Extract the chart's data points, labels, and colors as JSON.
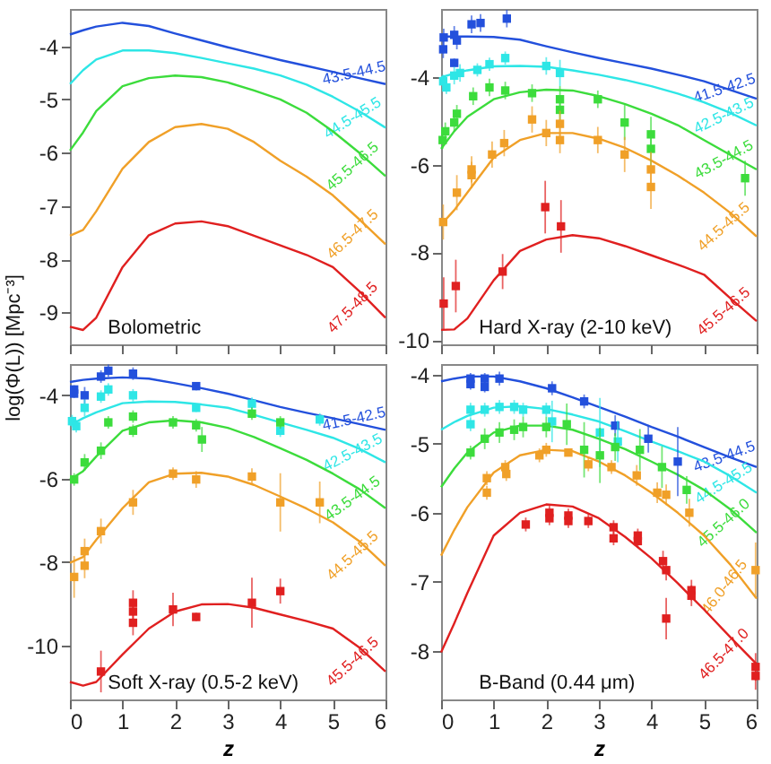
{
  "chart_data": [
    {
      "type": "line",
      "annotations": [
        "Bolometric"
      ],
      "xlim": [
        0,
        6
      ],
      "xticks": [
        0,
        1,
        2,
        3,
        4,
        5,
        6
      ],
      "ylim": [
        -9.6,
        -3.3
      ],
      "yticks": [
        -9,
        -8,
        -7,
        -6,
        -5,
        -4
      ],
      "tick_labels": "y",
      "x": [
        0,
        0.25,
        0.5,
        1,
        1.5,
        2,
        2.5,
        3,
        3.5,
        4,
        4.5,
        5,
        5.5,
        6
      ],
      "series": [
        {
          "name": "43.5-44.5",
          "color": "#2350dc",
          "values": [
            -3.78,
            -3.7,
            -3.63,
            -3.56,
            -3.62,
            -3.76,
            -3.89,
            -4.02,
            -4.14,
            -4.26,
            -4.37,
            -4.48,
            -4.6,
            -4.71
          ]
        },
        {
          "name": "44.5-45.5",
          "color": "#2ee6e6",
          "values": [
            -4.71,
            -4.45,
            -4.25,
            -4.08,
            -4.08,
            -4.13,
            -4.22,
            -4.32,
            -4.42,
            -4.55,
            -4.72,
            -4.95,
            -5.22,
            -5.53
          ]
        },
        {
          "name": "45.5-46.5",
          "color": "#3cdc3c",
          "values": [
            -5.96,
            -5.62,
            -5.22,
            -4.75,
            -4.6,
            -4.55,
            -4.58,
            -4.68,
            -4.83,
            -5.0,
            -5.25,
            -5.6,
            -6.0,
            -6.44
          ]
        },
        {
          "name": "46.5-47.5",
          "color": "#f0a028",
          "values": [
            -7.56,
            -7.45,
            -7.1,
            -6.3,
            -5.8,
            -5.52,
            -5.46,
            -5.55,
            -5.8,
            -6.15,
            -6.45,
            -6.8,
            -7.25,
            -7.72
          ]
        },
        {
          "name": "47.5-48.5",
          "color": "#e02020",
          "values": [
            -9.27,
            -9.33,
            -9.1,
            -8.15,
            -7.55,
            -7.33,
            -7.29,
            -7.38,
            -7.56,
            -7.74,
            -7.92,
            -8.15,
            -8.6,
            -9.1
          ]
        }
      ]
    },
    {
      "type": "line",
      "annotations": [
        "Hard X-ray (2-10 keV)"
      ],
      "xlim": [
        0,
        6
      ],
      "xticks": [
        0,
        1,
        2,
        3,
        4,
        5,
        6
      ],
      "ylim": [
        -10.1,
        -2.45
      ],
      "yticks": [
        -10,
        -8,
        -6,
        -4
      ],
      "tick_labels": "y",
      "x": [
        0,
        0.25,
        0.5,
        1,
        1.5,
        2,
        2.5,
        3,
        3.5,
        4,
        4.5,
        5,
        5.5,
        6
      ],
      "series": [
        {
          "name": "41.5-42.5",
          "color": "#2350dc",
          "values": [
            -3.08,
            -3.08,
            -3.08,
            -3.09,
            -3.15,
            -3.3,
            -3.44,
            -3.57,
            -3.69,
            -3.81,
            -3.95,
            -4.1,
            -4.3,
            -4.5
          ]
        },
        {
          "name": "42.5-43.5",
          "color": "#2ee6e6",
          "values": [
            -4.01,
            -3.92,
            -3.85,
            -3.76,
            -3.75,
            -3.77,
            -3.85,
            -3.95,
            -4.07,
            -4.21,
            -4.38,
            -4.58,
            -4.82,
            -5.11
          ]
        },
        {
          "name": "43.5-44.5",
          "color": "#3cdc3c",
          "values": [
            -5.64,
            -5.24,
            -4.91,
            -4.51,
            -4.35,
            -4.29,
            -4.31,
            -4.44,
            -4.62,
            -4.84,
            -5.1,
            -5.44,
            -5.78,
            -6.11
          ]
        },
        {
          "name": "44.5-45.5",
          "color": "#f0a028",
          "values": [
            -7.37,
            -7.04,
            -6.64,
            -5.84,
            -5.44,
            -5.28,
            -5.28,
            -5.41,
            -5.62,
            -5.91,
            -6.25,
            -6.64,
            -7.1,
            -7.64
          ]
        },
        {
          "name": "45.5-46.5",
          "color": "#e02020",
          "values": [
            -9.77,
            -9.76,
            -9.51,
            -8.64,
            -7.97,
            -7.71,
            -7.61,
            -7.68,
            -7.86,
            -8.07,
            -8.28,
            -8.51,
            -9.05,
            -9.57
          ]
        },
        {
          "type": "scatter",
          "color": "#2350dc",
          "marker": "square",
          "x": [
            0.04,
            0.05,
            0.25,
            0.3,
            0.58,
            0.75,
            1.25,
            0.25
          ],
          "values": [
            -3.37,
            -3.1,
            -3.04,
            -3.17,
            -2.8,
            -2.77,
            -2.67,
            -3.68
          ],
          "errors": [
            0.2,
            0.2,
            0.2,
            0.2,
            0.2,
            0.2,
            0.2,
            0.1
          ]
        },
        {
          "type": "scatter",
          "color": "#2ee6e6",
          "marker": "square",
          "x": [
            0.04,
            0.1,
            0.25,
            0.36,
            0.69,
            0.92,
            1.22,
            2.0,
            2.26
          ],
          "values": [
            -4.1,
            -4.24,
            -3.97,
            -3.91,
            -3.84,
            -3.71,
            -3.57,
            -3.75,
            -3.91
          ],
          "errors": [
            0.15,
            0.15,
            0.2,
            0.2,
            0.15,
            0.15,
            0.15,
            0.2,
            0.3
          ]
        },
        {
          "type": "scatter",
          "color": "#3cdc3c",
          "marker": "square",
          "x": [
            0.03,
            0.08,
            0.25,
            0.3,
            0.61,
            0.92,
            1.22,
            1.73,
            2.26,
            2.26,
            2.98,
            3.49,
            3.99,
            3.99,
            5.78
          ],
          "values": [
            -5.44,
            -5.24,
            -5.04,
            -4.84,
            -4.44,
            -4.24,
            -4.31,
            -4.37,
            -4.51,
            -4.75,
            -4.51,
            -5.04,
            -5.31,
            -5.64,
            -6.31
          ],
          "errors": [
            0.2,
            0.2,
            0.2,
            0.2,
            0.2,
            0.2,
            0.2,
            0.2,
            0.3,
            0.3,
            0.2,
            0.4,
            0.4,
            0.4,
            0.4
          ]
        },
        {
          "type": "scatter",
          "color": "#f0a028",
          "marker": "square",
          "x": [
            0.04,
            0.3,
            0.58,
            0.58,
            0.97,
            1.2,
            1.73,
            2.0,
            2.26,
            2.26,
            2.98,
            3.49,
            3.99,
            3.99
          ],
          "values": [
            -7.31,
            -6.64,
            -6.11,
            -6.24,
            -5.77,
            -5.51,
            -4.97,
            -5.28,
            -5.07,
            -5.44,
            -5.44,
            -5.77,
            -6.51,
            -6.11
          ],
          "errors": [
            0.4,
            0.4,
            0.3,
            0.3,
            0.3,
            0.3,
            0.3,
            0.3,
            0.3,
            0.3,
            0.3,
            0.4,
            0.5,
            0.4
          ]
        },
        {
          "type": "scatter",
          "color": "#e02020",
          "marker": "square",
          "x": [
            0.05,
            0.28,
            1.17,
            1.98,
            2.28
          ],
          "values": [
            -9.17,
            -8.77,
            -8.44,
            -6.97,
            -7.41
          ],
          "errors": [
            0.6,
            0.6,
            0.4,
            0.6,
            0.6
          ]
        }
      ]
    },
    {
      "type": "line",
      "annotations": [
        "Soft X-ray (0.5-2 keV)"
      ],
      "xlabel": "z",
      "ylabel": "log(Φ(L))  [Mpc⁻³]",
      "xlim": [
        0,
        6
      ],
      "xticks": [
        0,
        1,
        2,
        3,
        4,
        5,
        6
      ],
      "ylim": [
        -11.3,
        -3.25
      ],
      "yticks": [
        -10,
        -8,
        -6,
        -4
      ],
      "x": [
        0,
        0.25,
        0.5,
        1,
        1.5,
        2,
        2.5,
        3,
        3.5,
        4,
        4.5,
        5,
        5.5,
        6
      ],
      "series": [
        {
          "name": "41.5-42.5",
          "color": "#2350dc",
          "values": [
            -3.68,
            -3.63,
            -3.6,
            -3.57,
            -3.6,
            -3.71,
            -3.83,
            -3.96,
            -4.12,
            -4.28,
            -4.42,
            -4.55,
            -4.69,
            -4.83
          ]
        },
        {
          "name": "42.5-43.5",
          "color": "#2ee6e6",
          "values": [
            -4.72,
            -4.55,
            -4.41,
            -4.19,
            -4.15,
            -4.16,
            -4.22,
            -4.3,
            -4.47,
            -4.65,
            -4.83,
            -5.02,
            -5.28,
            -5.61
          ]
        },
        {
          "name": "43.5-44.5",
          "color": "#3cdc3c",
          "values": [
            -6.02,
            -5.82,
            -5.47,
            -4.85,
            -4.65,
            -4.6,
            -4.65,
            -4.78,
            -5.0,
            -5.27,
            -5.55,
            -5.88,
            -6.25,
            -6.71
          ]
        },
        {
          "name": "44.5-45.5",
          "color": "#f0a028",
          "values": [
            -8.02,
            -7.88,
            -7.47,
            -6.71,
            -6.09,
            -5.88,
            -5.86,
            -5.95,
            -6.15,
            -6.43,
            -6.72,
            -7.05,
            -7.5,
            -8.09
          ]
        },
        {
          "name": "45.5-46.5",
          "color": "#e02020",
          "values": [
            -10.88,
            -10.97,
            -10.88,
            -10.22,
            -9.6,
            -9.19,
            -9.02,
            -9.01,
            -9.1,
            -9.26,
            -9.42,
            -9.6,
            -10.05,
            -10.63
          ]
        },
        {
          "type": "scatter",
          "color": "#2350dc",
          "marker": "square",
          "x": [
            0.08,
            0.08,
            0.28,
            0.59,
            0.73,
            1.2,
            2.4
          ],
          "values": [
            -3.96,
            -3.86,
            -4.0,
            -3.55,
            -3.41,
            -3.48,
            -3.78
          ],
          "errors": [
            0.1,
            0.1,
            0.2,
            0.15,
            0.15,
            0.15,
            0.1
          ]
        },
        {
          "type": "scatter",
          "color": "#2ee6e6",
          "marker": "square",
          "x": [
            0.04,
            0.12,
            0.28,
            0.59,
            0.73,
            1.2,
            2.4,
            3.46,
            4.0,
            4.75
          ],
          "values": [
            -4.62,
            -4.74,
            -4.3,
            -4.03,
            -3.86,
            -4.0,
            -4.3,
            -4.2,
            -4.85,
            -4.58
          ],
          "errors": [
            0.15,
            0.15,
            0.2,
            0.15,
            0.15,
            0.15,
            0.1,
            0.15,
            0.15,
            0.15
          ]
        },
        {
          "type": "scatter",
          "color": "#3cdc3c",
          "marker": "square",
          "x": [
            0.08,
            0.28,
            0.59,
            0.73,
            1.2,
            1.2,
            1.96,
            2.4,
            2.51,
            3.46,
            4.0
          ],
          "values": [
            -6.02,
            -5.61,
            -5.33,
            -4.65,
            -4.85,
            -4.51,
            -4.65,
            -4.72,
            -5.06,
            -4.44,
            -4.65
          ],
          "errors": [
            0.15,
            0.2,
            0.2,
            0.15,
            0.15,
            0.15,
            0.15,
            0.15,
            0.3,
            0.15,
            0.15
          ]
        },
        {
          "type": "scatter",
          "color": "#f0a028",
          "marker": "square",
          "x": [
            0.08,
            0.28,
            0.28,
            0.59,
            1.2,
            1.96,
            2.4,
            3.46,
            4.0,
            4.75
          ],
          "values": [
            -8.36,
            -7.74,
            -8.09,
            -7.26,
            -6.57,
            -5.88,
            -6.02,
            -5.95,
            -6.57,
            -6.57
          ],
          "errors": [
            0.5,
            0.3,
            0.3,
            0.3,
            0.3,
            0.15,
            0.2,
            0.2,
            0.7,
            0.5
          ]
        },
        {
          "type": "scatter",
          "color": "#e02020",
          "marker": "square",
          "x": [
            1.2,
            1.2,
            1.2,
            1.96,
            2.4,
            3.46,
            4.0,
            0.59
          ],
          "values": [
            -8.98,
            -9.19,
            -9.46,
            -9.14,
            -9.32,
            -8.98,
            -8.7,
            -10.63
          ],
          "errors": [
            0.3,
            0.3,
            0.3,
            0.4,
            0.1,
            0.6,
            0.3,
            0.5
          ]
        }
      ]
    },
    {
      "type": "line",
      "annotations": [
        "B-Band (0.44 μm)"
      ],
      "xlabel": "z",
      "xlim": [
        0,
        6
      ],
      "xticks": [
        0,
        1,
        2,
        3,
        4,
        5,
        6
      ],
      "ylim": [
        -8.7,
        -3.85
      ],
      "yticks": [
        -8,
        -7,
        -6,
        -5,
        -4
      ],
      "x": [
        0,
        0.25,
        0.5,
        1,
        1.5,
        2,
        2.5,
        3,
        3.5,
        4,
        4.5,
        5,
        5.5,
        6
      ],
      "series": [
        {
          "name": "43.5-44.5",
          "color": "#2350dc",
          "values": [
            -4.1,
            -4.06,
            -4.03,
            -4.03,
            -4.1,
            -4.2,
            -4.33,
            -4.47,
            -4.61,
            -4.76,
            -4.9,
            -5.05,
            -5.2,
            -5.34
          ]
        },
        {
          "name": "44.5-45.5",
          "color": "#2ee6e6",
          "values": [
            -4.8,
            -4.69,
            -4.6,
            -4.48,
            -4.46,
            -4.5,
            -4.58,
            -4.68,
            -4.82,
            -4.97,
            -5.11,
            -5.26,
            -5.47,
            -5.71
          ]
        },
        {
          "name": "45.5-46.0",
          "color": "#3cdc3c",
          "values": [
            -5.63,
            -5.36,
            -5.13,
            -4.84,
            -4.74,
            -4.74,
            -4.8,
            -4.93,
            -5.08,
            -5.26,
            -5.45,
            -5.67,
            -5.95,
            -6.29
          ]
        },
        {
          "name": "46.0-46.5",
          "color": "#f0a028",
          "values": [
            -6.62,
            -6.25,
            -5.92,
            -5.42,
            -5.17,
            -5.09,
            -5.11,
            -5.26,
            -5.46,
            -5.71,
            -6.0,
            -6.33,
            -6.75,
            -7.24
          ]
        },
        {
          "name": "46.5-47.0",
          "color": "#e02020",
          "values": [
            -8.02,
            -7.6,
            -7.16,
            -6.33,
            -6.0,
            -5.88,
            -5.91,
            -6.08,
            -6.35,
            -6.66,
            -7.02,
            -7.4,
            -7.8,
            -8.19
          ]
        },
        {
          "type": "scatter",
          "color": "#2350dc",
          "marker": "square",
          "x": [
            0.56,
            0.56,
            0.83,
            0.83,
            1.11,
            2.11,
            2.72,
            3.31,
            3.94,
            4.5
          ],
          "values": [
            -4.06,
            -4.14,
            -4.06,
            -4.18,
            -4.06,
            -4.2,
            -4.39,
            -4.74,
            -4.93,
            -5.26
          ],
          "errors": [
            0.08,
            0.08,
            0.08,
            0.08,
            0.1,
            0.1,
            0.1,
            0.15,
            0.2,
            0.5
          ]
        },
        {
          "type": "scatter",
          "color": "#2ee6e6",
          "marker": "square",
          "x": [
            0.56,
            0.56,
            0.83,
            1.11,
            1.39,
            1.56,
            2.0,
            2.11,
            3.02,
            3.36
          ],
          "values": [
            -4.51,
            -4.72,
            -4.51,
            -4.47,
            -4.47,
            -4.51,
            -4.51,
            -4.68,
            -4.84,
            -4.97
          ],
          "errors": [
            0.1,
            0.1,
            0.1,
            0.1,
            0.1,
            0.1,
            0.1,
            0.3,
            0.5,
            0.3
          ]
        },
        {
          "type": "scatter",
          "color": "#3cdc3c",
          "marker": "square",
          "x": [
            0.56,
            0.83,
            1.11,
            1.39,
            1.56,
            2.0,
            2.39,
            2.72,
            3.02,
            3.31,
            3.78,
            4.2,
            4.67
          ],
          "values": [
            -5.13,
            -4.93,
            -4.84,
            -4.8,
            -4.76,
            -4.76,
            -4.72,
            -5.09,
            -5.17,
            -5.05,
            -5.09,
            -5.34,
            -5.67
          ],
          "errors": [
            0.1,
            0.15,
            0.15,
            0.15,
            0.15,
            0.15,
            0.3,
            0.4,
            0.4,
            0.2,
            0.3,
            0.3,
            0.2
          ]
        },
        {
          "type": "scatter",
          "color": "#f0a028",
          "marker": "square",
          "x": [
            0.87,
            0.87,
            1.22,
            1.24,
            1.87,
            2.0,
            2.42,
            2.8,
            3.24,
            3.72,
            4.11,
            4.28,
            4.72,
            5.98
          ],
          "values": [
            -5.5,
            -5.71,
            -5.34,
            -5.44,
            -5.17,
            -5.09,
            -5.13,
            -5.3,
            -5.34,
            -5.46,
            -5.71,
            -5.74,
            -6.0,
            -6.83
          ],
          "errors": [
            0.1,
            0.1,
            0.1,
            0.1,
            0.1,
            0.1,
            0.05,
            0.1,
            0.1,
            0.15,
            0.15,
            0.15,
            0.2,
            0.4
          ]
        },
        {
          "type": "scatter",
          "color": "#e02020",
          "marker": "square",
          "x": [
            1.61,
            2.06,
            2.06,
            2.42,
            2.42,
            2.8,
            3.28,
            3.28,
            3.74,
            3.74,
            4.22,
            4.28,
            4.76,
            4.76,
            4.28,
            5.98,
            5.98
          ],
          "values": [
            -6.17,
            -6.0,
            -6.08,
            -6.04,
            -6.12,
            -6.12,
            -6.21,
            -6.37,
            -6.33,
            -6.41,
            -6.7,
            -6.83,
            -7.12,
            -7.2,
            -7.53,
            -8.23,
            -8.36
          ],
          "errors": [
            0.1,
            0.1,
            0.1,
            0.1,
            0.1,
            0.1,
            0.1,
            0.1,
            0.1,
            0.1,
            0.15,
            0.15,
            0.15,
            0.15,
            0.3,
            0.2,
            0.2
          ]
        }
      ]
    }
  ]
}
